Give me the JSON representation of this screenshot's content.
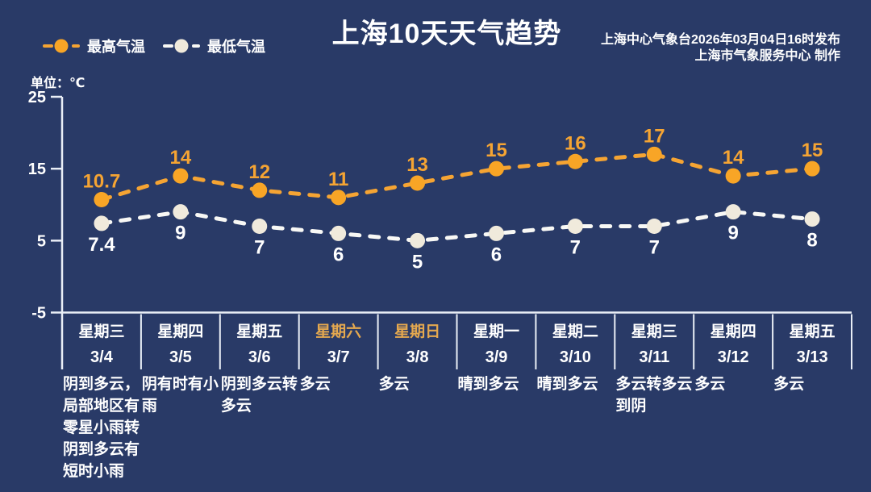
{
  "header": {
    "title": "上海10天天气趋势",
    "issued_line": "上海中心气象台2026年03月04日16时发布",
    "producer_line": "上海市气象服务中心  制作"
  },
  "legend": {
    "max_label": "最高气温",
    "min_label": "最低气温"
  },
  "chart": {
    "unit_label": "单位：℃"
  },
  "colors": {
    "background": "#293A67",
    "max_accent": "#F5A433",
    "max_marker": "#F8A526",
    "min_marker": "#F0EADC",
    "min_line": "#F8F8F5",
    "text": "#FFFFFF",
    "axis": "#E9EEF6",
    "weekend_accent": "#E4A84F"
  },
  "chart_data": {
    "type": "line",
    "title": "上海10天天气趋势",
    "categories": [
      "3/4",
      "3/5",
      "3/6",
      "3/7",
      "3/8",
      "3/9",
      "3/10",
      "3/11",
      "3/12",
      "3/13"
    ],
    "weekdays": [
      "星期三",
      "星期四",
      "星期五",
      "星期六",
      "星期日",
      "星期一",
      "星期二",
      "星期三",
      "星期四",
      "星期五"
    ],
    "weekend_flags": [
      false,
      false,
      false,
      true,
      true,
      false,
      false,
      false,
      false,
      false
    ],
    "series": [
      {
        "name": "最高气温",
        "values": [
          10.7,
          14,
          12,
          11,
          13,
          15,
          16,
          17,
          14,
          15
        ]
      },
      {
        "name": "最低气温",
        "values": [
          7.4,
          9,
          7,
          6,
          5,
          6,
          7,
          7,
          9,
          8
        ]
      }
    ],
    "descriptions": [
      "阴到多云，局部地区有零星小雨转阴到多云有短时小雨",
      "阴有时有小雨",
      "阴到多云转多云",
      "多云",
      "多云",
      "晴到多云",
      "晴到多云",
      "多云转多云到阴",
      "多云",
      "多云"
    ],
    "ylabel": "单位：℃",
    "yticks": [
      25,
      15,
      5,
      -5
    ],
    "ylim": [
      -5,
      25
    ],
    "grid": false,
    "line_style": "dashed",
    "legend_position": "top-left"
  }
}
